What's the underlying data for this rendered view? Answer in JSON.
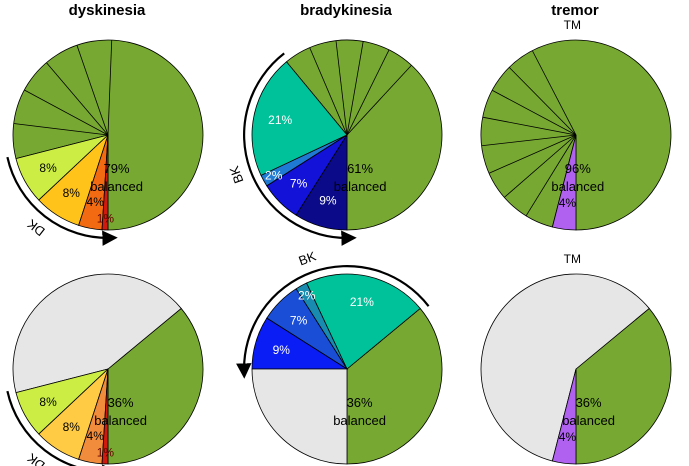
{
  "headers": [
    "dyskinesia",
    "bradykinesia",
    "tremor"
  ],
  "colors": {
    "balanced": "#77a832",
    "gray": "#e6e6e6",
    "dk": [
      "#ccee44",
      "#ffc31a",
      "#f26b12",
      "#d11a0f"
    ],
    "dk_light": [
      "#ccee44",
      "#ffca44",
      "#f08c3c",
      "#d11a0f"
    ],
    "bk": [
      "#00c29a",
      "#1e7ad2",
      "#1212d9",
      "#0b0b8a"
    ],
    "bk_light": [
      "#00c29a",
      "#1a8bb0",
      "#1a4ed6",
      "#0b1df5"
    ],
    "tm": "#b061f0"
  },
  "chart_data": [
    {
      "type": "pie",
      "row": 1,
      "column": "dyskinesia",
      "arrow_label": "DK",
      "slices": [
        {
          "label": "balanced",
          "value": 79,
          "shown": "79%",
          "color_key": "balanced",
          "subdivisions": 6
        },
        {
          "label": "DK-1",
          "value": 8,
          "shown": "8%",
          "color_key": "dk.0"
        },
        {
          "label": "DK-2",
          "value": 8,
          "shown": "8%",
          "color_key": "dk.1"
        },
        {
          "label": "DK-3",
          "value": 4,
          "shown": "4%",
          "color_key": "dk.2"
        },
        {
          "label": "DK-4",
          "value": 1,
          "shown": "1%",
          "color_key": "dk.3"
        }
      ],
      "center_text": [
        "79%",
        "balanced"
      ]
    },
    {
      "type": "pie",
      "row": 1,
      "column": "bradykinesia",
      "arrow_label": "BK",
      "slices": [
        {
          "label": "balanced",
          "value": 61,
          "shown": "61%",
          "color_key": "balanced",
          "subdivisions": 6
        },
        {
          "label": "BK-1",
          "value": 21,
          "shown": "21%",
          "color_key": "bk.0"
        },
        {
          "label": "BK-2",
          "value": 2,
          "shown": "2%",
          "color_key": "bk.1"
        },
        {
          "label": "BK-3",
          "value": 7,
          "shown": "7%",
          "color_key": "bk.2"
        },
        {
          "label": "BK-4",
          "value": 9,
          "shown": "9%",
          "color_key": "bk.3"
        }
      ],
      "center_text": [
        "61%",
        "balanced"
      ]
    },
    {
      "type": "pie",
      "row": 1,
      "column": "tremor",
      "arrow_label": "TM",
      "slices": [
        {
          "label": "balanced",
          "value": 96,
          "shown": "96%",
          "color_key": "balanced",
          "subdivisions": 9
        },
        {
          "label": "TM",
          "value": 4,
          "shown": "4%",
          "color_key": "tm"
        }
      ],
      "center_text": [
        "96%",
        "balanced"
      ]
    },
    {
      "type": "pie",
      "row": 2,
      "column": "dyskinesia",
      "arrow_label": "DK",
      "slices": [
        {
          "label": "balanced",
          "value": 36,
          "shown": "36%",
          "color_key": "balanced"
        },
        {
          "label": "other",
          "value": 43,
          "shown": "",
          "color_key": "gray"
        },
        {
          "label": "DK-1",
          "value": 8,
          "shown": "8%",
          "color_key": "dk_light.0"
        },
        {
          "label": "DK-2",
          "value": 8,
          "shown": "8%",
          "color_key": "dk_light.1"
        },
        {
          "label": "DK-3",
          "value": 4,
          "shown": "4%",
          "color_key": "dk_light.2"
        },
        {
          "label": "DK-4",
          "value": 1,
          "shown": "1%",
          "color_key": "dk_light.3"
        }
      ],
      "center_text": [
        "36%",
        "balanced"
      ]
    },
    {
      "type": "pie",
      "row": 2,
      "column": "bradykinesia",
      "arrow_label": "BK",
      "slices": [
        {
          "label": "balanced",
          "value": 36,
          "shown": "36%",
          "color_key": "balanced"
        },
        {
          "label": "BK-1",
          "value": 21,
          "shown": "21%",
          "color_key": "bk_light.0"
        },
        {
          "label": "BK-2",
          "value": 2,
          "shown": "2%",
          "color_key": "bk_light.1"
        },
        {
          "label": "BK-3",
          "value": 7,
          "shown": "7%",
          "color_key": "bk_light.2"
        },
        {
          "label": "BK-4",
          "value": 9,
          "shown": "9%",
          "color_key": "bk_light.3"
        },
        {
          "label": "other",
          "value": 25,
          "shown": "",
          "color_key": "gray"
        }
      ],
      "center_text": [
        "36%",
        "balanced"
      ]
    },
    {
      "type": "pie",
      "row": 2,
      "column": "tremor",
      "arrow_label": "TM",
      "slices": [
        {
          "label": "balanced",
          "value": 36,
          "shown": "36%",
          "color_key": "balanced"
        },
        {
          "label": "other",
          "value": 60,
          "shown": "",
          "color_key": "gray"
        },
        {
          "label": "TM",
          "value": 4,
          "shown": "4%",
          "color_key": "tm"
        }
      ],
      "center_text": [
        "36%",
        "balanced"
      ]
    }
  ]
}
